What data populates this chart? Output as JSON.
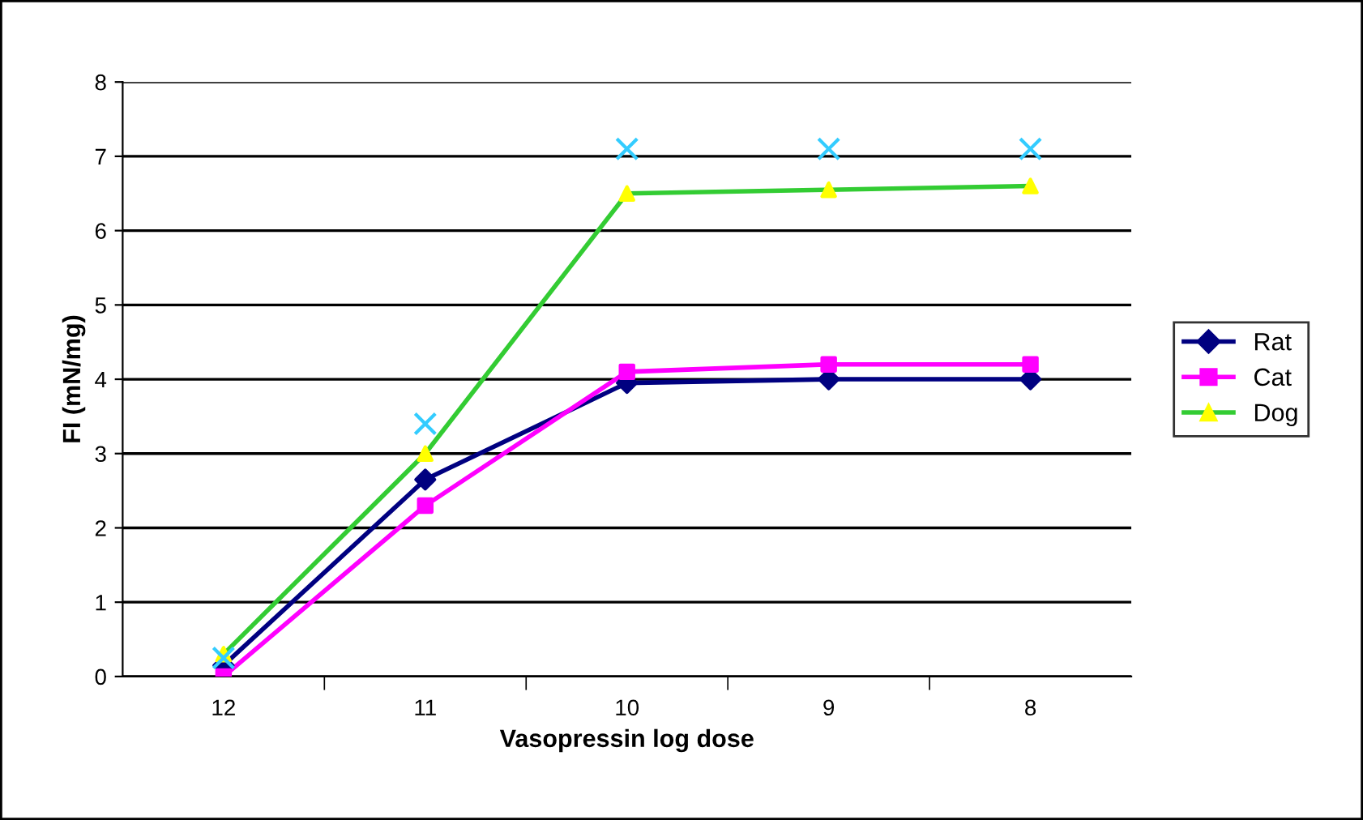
{
  "chart_data": {
    "type": "line",
    "xlabel": "Vasopressin log dose",
    "ylabel": "FI (mN/mg)",
    "categories": [
      "12",
      "11",
      "10",
      "9",
      "8"
    ],
    "series": [
      {
        "name": "Rat",
        "color": "#000080",
        "marker": "diamond",
        "values": [
          0.15,
          2.65,
          3.95,
          4.0,
          4.0
        ]
      },
      {
        "name": "Cat",
        "color": "#ff00ff",
        "marker": "square",
        "values": [
          0.0,
          2.3,
          4.1,
          4.2,
          4.2
        ]
      },
      {
        "name": "Dog",
        "color": "#33cc33",
        "colors": [
          "#ffff00",
          "#ffff00",
          "#ffff00",
          "#ffff00",
          "#ffff00"
        ],
        "marker": "triangle",
        "values": [
          0.3,
          3.0,
          6.5,
          6.55,
          6.6
        ]
      },
      {
        "type": "scatter",
        "color": "#33ccff",
        "marker": "cross",
        "values": [
          0.25,
          3.4,
          7.1,
          7.1,
          7.1
        ]
      }
    ],
    "ylim": [
      0,
      8
    ],
    "yticks": [
      0,
      1,
      2,
      3,
      4,
      5,
      6,
      7,
      8
    ],
    "grid": "y",
    "legend": "right"
  }
}
